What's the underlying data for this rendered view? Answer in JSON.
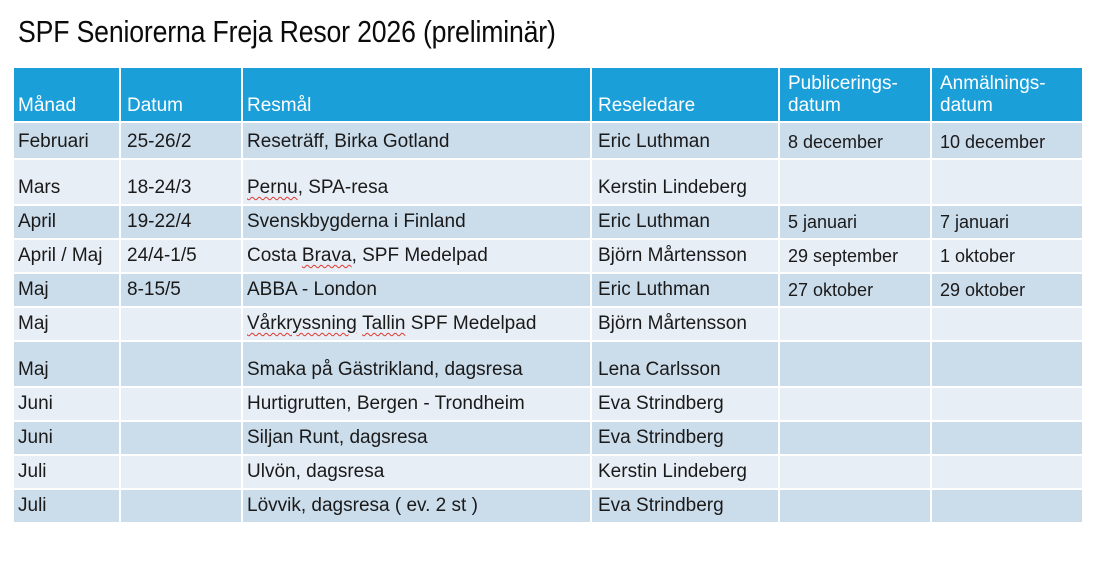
{
  "title": "SPF Seniorerna Freja Resor 2026 (preliminär)",
  "colors": {
    "header_bg": "#1B9FD9",
    "row_band_dark": "#CBDCEB",
    "row_band_light": "#E8EEF6",
    "gridline": "#FFFFFF",
    "header_text": "#FFFFFF",
    "body_text": "#1A1A1A",
    "spellcheck_underline": "#E0392E"
  },
  "table": {
    "headers": {
      "manad": "Månad",
      "datum": "Datum",
      "resmal": "Resmål",
      "reseledare": "Reseledare",
      "publiceringsdatum": "Publicerings-\ndatum",
      "anmalningsdatum": "Anmälnings-\ndatum"
    },
    "rows": [
      {
        "manad": "Februari",
        "datum": "25-26/2",
        "resmal": [
          {
            "text": "Reseträff, Birka Gotland",
            "misspelled": false
          }
        ],
        "reseledare": "Eric Luthman",
        "publiceringsdatum": "8 december",
        "anmalningsdatum": "10 december"
      },
      {
        "manad": "Mars",
        "datum": "18-24/3",
        "resmal": [
          {
            "text": "Pernu",
            "misspelled": true
          },
          {
            "text": ", SPA-resa",
            "misspelled": false
          }
        ],
        "reseledare": "Kerstin Lindeberg",
        "publiceringsdatum": "",
        "anmalningsdatum": ""
      },
      {
        "manad": "April",
        "datum": "19-22/4",
        "resmal": [
          {
            "text": "Svenskbygderna i Finland",
            "misspelled": false
          }
        ],
        "reseledare": "Eric Luthman",
        "publiceringsdatum": "5 januari",
        "anmalningsdatum": "7 januari"
      },
      {
        "manad": "April / Maj",
        "datum": "24/4-1/5",
        "resmal": [
          {
            "text": "Costa ",
            "misspelled": false
          },
          {
            "text": "Brava",
            "misspelled": true
          },
          {
            "text": ", SPF Medelpad",
            "misspelled": false
          }
        ],
        "reseledare": "Björn Mårtensson",
        "publiceringsdatum": "29 september",
        "anmalningsdatum": "1 oktober"
      },
      {
        "manad": "Maj",
        "datum": "8-15/5",
        "resmal": [
          {
            "text": "ABBA - London",
            "misspelled": false
          }
        ],
        "reseledare": "Eric Luthman",
        "publiceringsdatum": "27 oktober",
        "anmalningsdatum": "29 oktober"
      },
      {
        "manad": "Maj",
        "datum": "",
        "resmal": [
          {
            "text": "Vårkryssning",
            "misspelled": true
          },
          {
            "text": " ",
            "misspelled": false
          },
          {
            "text": "Tallin",
            "misspelled": true
          },
          {
            "text": " SPF Medelpad",
            "misspelled": false
          }
        ],
        "reseledare": "Björn Mårtensson",
        "publiceringsdatum": "",
        "anmalningsdatum": ""
      },
      {
        "manad": "Maj",
        "datum": "",
        "resmal": [
          {
            "text": "Smaka på Gästrikland, dagsresa",
            "misspelled": false
          }
        ],
        "reseledare": "Lena Carlsson",
        "publiceringsdatum": "",
        "anmalningsdatum": ""
      },
      {
        "manad": "Juni",
        "datum": "",
        "resmal": [
          {
            "text": "Hurtigrutten, Bergen - Trondheim",
            "misspelled": false
          }
        ],
        "reseledare": "Eva Strindberg",
        "publiceringsdatum": "",
        "anmalningsdatum": ""
      },
      {
        "manad": "Juni",
        "datum": "",
        "resmal": [
          {
            "text": "Siljan Runt, dagsresa",
            "misspelled": false
          }
        ],
        "reseledare": "Eva Strindberg",
        "publiceringsdatum": "",
        "anmalningsdatum": ""
      },
      {
        "manad": "Juli",
        "datum": "",
        "resmal": [
          {
            "text": "Ulvön, dagsresa",
            "misspelled": false
          }
        ],
        "reseledare": "Kerstin Lindeberg",
        "publiceringsdatum": "",
        "anmalningsdatum": ""
      },
      {
        "manad": "Juli",
        "datum": "",
        "resmal": [
          {
            "text": "Lövvik, dagsresa ( ev. 2 st )",
            "misspelled": false
          }
        ],
        "reseledare": "Eva Strindberg",
        "publiceringsdatum": "",
        "anmalningsdatum": ""
      }
    ]
  }
}
